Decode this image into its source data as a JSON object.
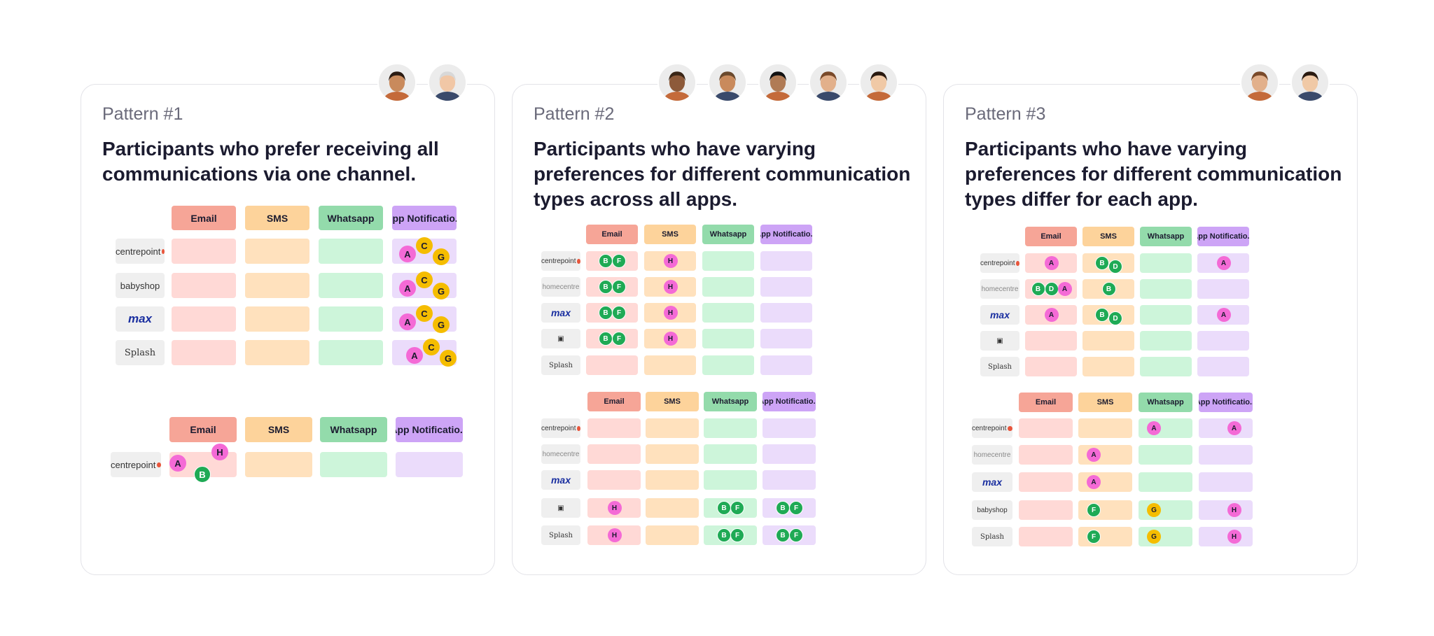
{
  "columns": [
    "Email",
    "SMS",
    "Whatsapp",
    "App Notificatio..."
  ],
  "patterns": [
    {
      "label": "Pattern #1",
      "title": "Participants who prefer receiving all communications via one channel.",
      "avatars": [
        "person-1",
        "person-2"
      ],
      "tables": [
        {
          "rows": [
            {
              "brand": "centrepoint",
              "cells": [
                [],
                [],
                [],
                [
                  "A",
                  "C",
                  "G"
                ]
              ]
            },
            {
              "brand": "babyshop",
              "cells": [
                [],
                [],
                [],
                [
                  "A",
                  "C",
                  "G"
                ]
              ]
            },
            {
              "brand": "max",
              "cells": [
                [],
                [],
                [],
                [
                  "A",
                  "C",
                  "G"
                ]
              ]
            },
            {
              "brand": "Splash",
              "cells": [
                [],
                [],
                [],
                [
                  "A",
                  "C",
                  "G"
                ]
              ]
            }
          ]
        },
        {
          "rows": [
            {
              "brand": "centrepoint",
              "cells": [
                [
                  "A",
                  "H",
                  "B"
                ],
                [],
                [],
                []
              ]
            }
          ]
        }
      ]
    },
    {
      "label": "Pattern #2",
      "title": "Participants who have varying preferences for different communication types across all apps.",
      "avatars": [
        "person-3",
        "person-4",
        "person-5",
        "person-6",
        "person-7"
      ],
      "tables": [
        {
          "rows": [
            {
              "brand": "centrepoint",
              "cells": [
                [
                  "B",
                  "F"
                ],
                [
                  "H"
                ],
                [],
                []
              ]
            },
            {
              "brand": "homecentre",
              "cells": [
                [
                  "B",
                  "F"
                ],
                [
                  "H"
                ],
                [],
                []
              ]
            },
            {
              "brand": "max",
              "cells": [
                [
                  "B",
                  "F"
                ],
                [
                  "H"
                ],
                [],
                []
              ]
            },
            {
              "brand": "lifestyle",
              "cells": [
                [
                  "B",
                  "F"
                ],
                [
                  "H"
                ],
                [],
                []
              ]
            },
            {
              "brand": "Splash",
              "cells": [
                [],
                [],
                [],
                []
              ]
            }
          ]
        },
        {
          "rows": [
            {
              "brand": "centrepoint",
              "cells": [
                [],
                [],
                [],
                []
              ]
            },
            {
              "brand": "homecentre",
              "cells": [
                [],
                [],
                [],
                []
              ]
            },
            {
              "brand": "max",
              "cells": [
                [],
                [],
                [],
                []
              ]
            },
            {
              "brand": "lifestyle",
              "cells": [
                [
                  "H"
                ],
                [],
                [
                  "B",
                  "F"
                ],
                [
                  "B",
                  "F"
                ]
              ]
            },
            {
              "brand": "Splash",
              "cells": [
                [
                  "H"
                ],
                [],
                [
                  "B",
                  "F"
                ],
                [
                  "B",
                  "F"
                ]
              ]
            }
          ]
        }
      ]
    },
    {
      "label": "Pattern #3",
      "title": "Participants who have varying preferences for different communication types differ for each app.",
      "avatars": [
        "person-8",
        "person-9"
      ],
      "tables": [
        {
          "rows": [
            {
              "brand": "centrepoint",
              "cells": [
                [
                  "A"
                ],
                [
                  "B",
                  "D"
                ],
                [],
                [
                  "A"
                ]
              ]
            },
            {
              "brand": "homecentre",
              "cells": [
                [
                  "B",
                  "D",
                  "A"
                ],
                [
                  "B"
                ],
                [],
                []
              ]
            },
            {
              "brand": "max",
              "cells": [
                [
                  "A"
                ],
                [
                  "B",
                  "D"
                ],
                [],
                [
                  "A"
                ]
              ]
            },
            {
              "brand": "lifestyle",
              "cells": [
                [],
                [],
                [],
                []
              ]
            },
            {
              "brand": "Splash",
              "cells": [
                [],
                [],
                [],
                []
              ]
            }
          ]
        },
        {
          "rows": [
            {
              "brand": "centrepoint",
              "cells": [
                [],
                [],
                [
                  "A"
                ],
                [
                  "A"
                ]
              ]
            },
            {
              "brand": "homecentre",
              "cells": [
                [],
                [
                  "A"
                ],
                [],
                []
              ]
            },
            {
              "brand": "max",
              "cells": [
                [],
                [
                  "A"
                ],
                [],
                []
              ]
            },
            {
              "brand": "babyshop",
              "cells": [
                [],
                [
                  "F"
                ],
                [
                  "G"
                ],
                [
                  "H"
                ]
              ]
            },
            {
              "brand": "Splash",
              "cells": [
                [],
                [
                  "F"
                ],
                [
                  "G"
                ],
                [
                  "H"
                ]
              ]
            }
          ]
        }
      ]
    }
  ],
  "brand_labels": {
    "centrepoint": "centrepoint",
    "babyshop": "babyshop",
    "max": "max",
    "Splash": "Splash",
    "homecentre": "homecentre",
    "lifestyle": "▣"
  },
  "chip_colors": {
    "A": "#f46ad6",
    "H": "#f46ad6",
    "B": "#1faa55",
    "F": "#1faa55",
    "D": "#1faa55",
    "C": "#f5bd00",
    "G": "#f5bd00"
  }
}
